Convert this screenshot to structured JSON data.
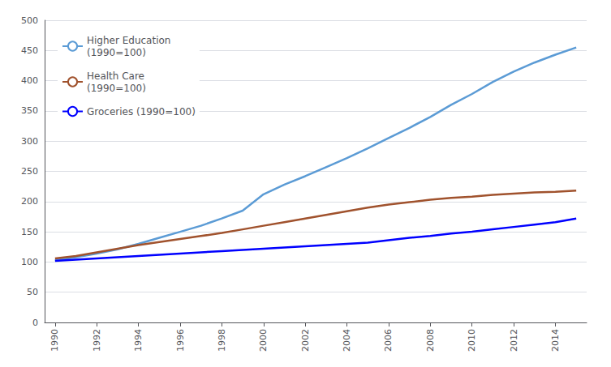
{
  "chart_data": {
    "type": "line",
    "x": [
      1990,
      1991,
      1992,
      1993,
      1994,
      1995,
      1996,
      1997,
      1998,
      1999,
      2000,
      2001,
      2002,
      2003,
      2004,
      2005,
      2006,
      2007,
      2008,
      2009,
      2010,
      2011,
      2012,
      2013,
      2014,
      2015
    ],
    "series": [
      {
        "name": "Higher Education\n(1990=100)",
        "color": "#5b9bd5",
        "values": [
          103,
          108,
          114,
          121,
          130,
          140,
          150,
          160,
          172,
          185,
          212,
          228,
          242,
          257,
          272,
          288,
          305,
          322,
          340,
          360,
          378,
          398,
          415,
          430,
          443,
          455
        ]
      },
      {
        "name": "Health Care\n(1990=100)",
        "color": "#a0522d",
        "values": [
          106,
          110,
          116,
          122,
          128,
          133,
          138,
          143,
          148,
          154,
          160,
          166,
          172,
          178,
          184,
          190,
          195,
          199,
          203,
          206,
          208,
          211,
          213,
          215,
          216,
          218
        ]
      },
      {
        "name": "Groceries (1990=100)",
        "color": "#0000ff",
        "values": [
          102,
          104,
          106,
          108,
          110,
          112,
          114,
          116,
          118,
          120,
          122,
          124,
          126,
          128,
          130,
          132,
          136,
          140,
          143,
          147,
          150,
          154,
          158,
          162,
          166,
          172
        ]
      }
    ],
    "xlim": [
      1989.5,
      2015.5
    ],
    "xticks": [
      1990,
      1992,
      1994,
      1996,
      1998,
      2000,
      2002,
      2004,
      2006,
      2008,
      2010,
      2012,
      2014
    ],
    "ylim": [
      0,
      500
    ],
    "yticks": [
      0,
      50,
      100,
      150,
      200,
      250,
      300,
      350,
      400,
      450,
      500
    ],
    "grid": true,
    "legend": "upper left"
  }
}
